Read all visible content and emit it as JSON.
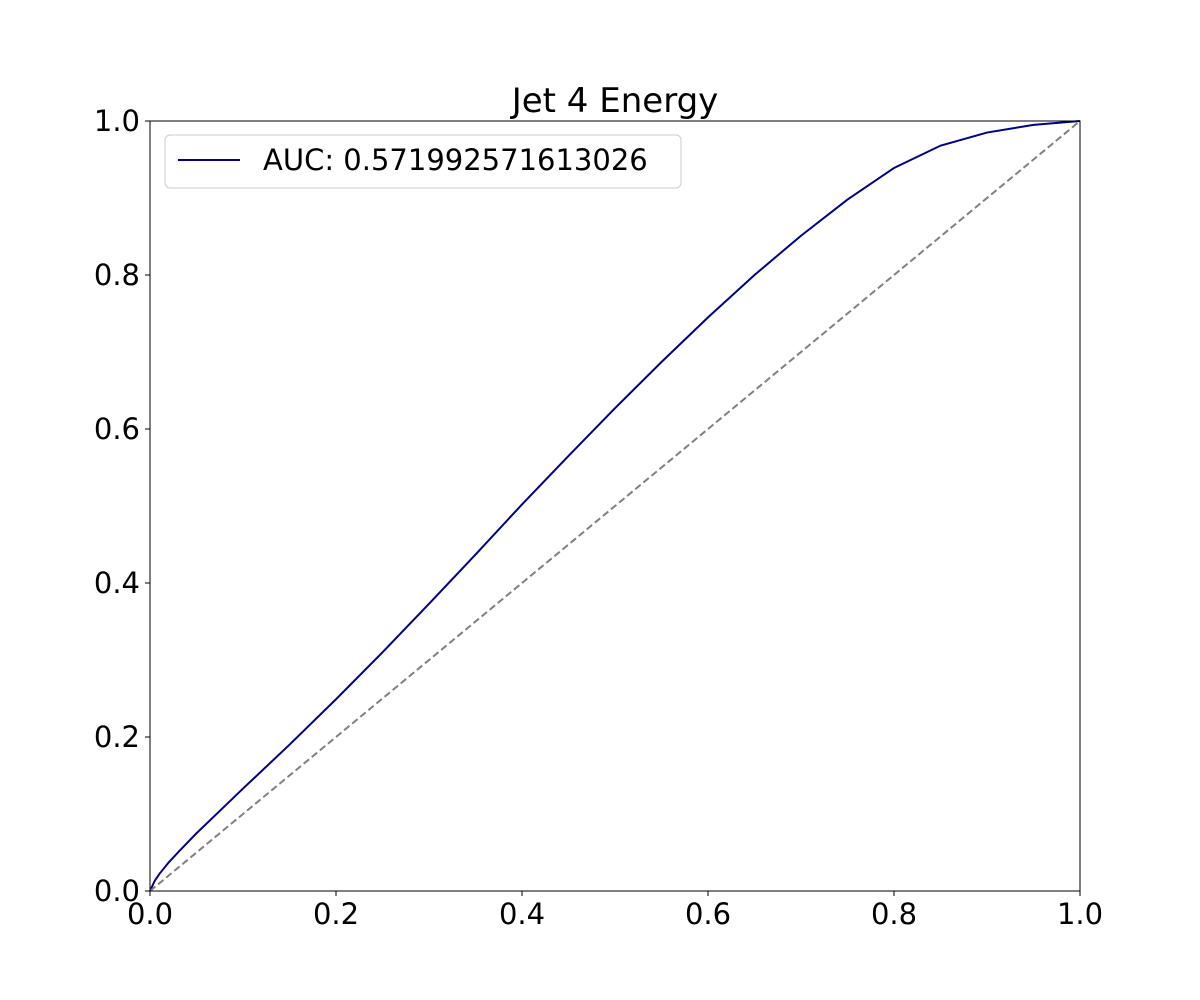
{
  "chart_data": {
    "type": "line",
    "title": "Jet 4 Energy",
    "xlabel": "",
    "ylabel": "",
    "xlim": [
      0.0,
      1.0
    ],
    "ylim": [
      0.0,
      1.0
    ],
    "x_ticks": [
      "0.0",
      "0.2",
      "0.4",
      "0.6",
      "0.8",
      "1.0"
    ],
    "y_ticks": [
      "0.0",
      "0.2",
      "0.4",
      "0.6",
      "0.8",
      "1.0"
    ],
    "grid": false,
    "legend_position": "upper-left",
    "series": [
      {
        "name": "AUC: 0.571992571613026",
        "color": "#000080",
        "style": "solid",
        "x": [
          0.0,
          0.005,
          0.01,
          0.02,
          0.03,
          0.05,
          0.075,
          0.1,
          0.15,
          0.2,
          0.25,
          0.3,
          0.35,
          0.4,
          0.45,
          0.5,
          0.55,
          0.6,
          0.65,
          0.7,
          0.75,
          0.8,
          0.85,
          0.9,
          0.95,
          1.0
        ],
        "y": [
          0.0,
          0.013,
          0.022,
          0.037,
          0.05,
          0.075,
          0.104,
          0.133,
          0.19,
          0.249,
          0.31,
          0.373,
          0.437,
          0.502,
          0.565,
          0.627,
          0.687,
          0.745,
          0.8,
          0.851,
          0.898,
          0.939,
          0.968,
          0.985,
          0.995,
          1.0
        ]
      },
      {
        "name": "",
        "color": "#808080",
        "style": "dashed",
        "x": [
          0.0,
          1.0
        ],
        "y": [
          0.0,
          1.0
        ]
      }
    ]
  }
}
